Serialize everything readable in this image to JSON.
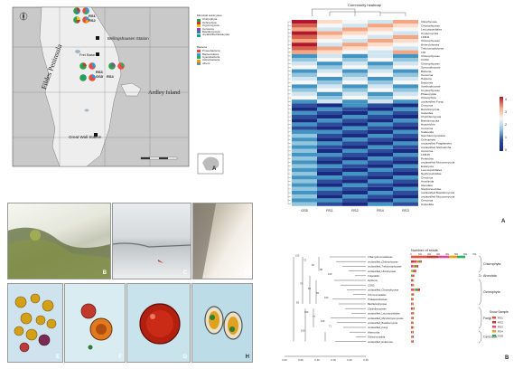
{
  "map": {
    "peninsula_label": "Fildes Peninsula",
    "island_label": "Ardley Island",
    "stations": [
      "Bellingshausen Station",
      "Frei Base",
      "Great Wall Station"
    ],
    "site_labels": [
      "RS1",
      "RS2",
      "RS3",
      "RS4",
      "GS5"
    ],
    "legend_eukaryotes_title": "Microbial eukaryotes",
    "legend_eukaryotes": [
      {
        "name": "Chlorophyta",
        "color": "#2e9e4a"
      },
      {
        "name": "Ochrophyta",
        "color": "#c0392b"
      },
      {
        "name": "Cryptomycota",
        "color": "#f1c40f"
      },
      {
        "name": "Cercozoa",
        "color": "#8e44ad"
      },
      {
        "name": "Basidiomycota",
        "color": "#2980b9"
      },
      {
        "name": "unclassified Eukaryota",
        "color": "#16a085"
      }
    ],
    "legend_bacteria_title": "Bacteria",
    "legend_bacteria": [
      {
        "name": "Proteobacteria",
        "color": "#e74c3c"
      },
      {
        "name": "Bacteroidetes",
        "color": "#3498db"
      },
      {
        "name": "Cyanobacteria",
        "color": "#27ae60"
      },
      {
        "name": "Actinobacteria",
        "color": "#f39c12"
      },
      {
        "name": "others",
        "color": "#7f8c8d"
      }
    ],
    "panel_letter": "A"
  },
  "photo_panels": [
    "B",
    "C",
    "D"
  ],
  "micro_panels": [
    "E",
    "F",
    "G",
    "H"
  ],
  "heatmap": {
    "title": "Community heatmap",
    "columns": [
      "GS5",
      "RS1",
      "RS2",
      "RS4",
      "RS3"
    ],
    "rows": [
      "Ulkophyceae",
      "Chlorophyceae",
      "Leucosporidiales",
      "Cryptomycota",
      "LKM11",
      "Chlorophyceae",
      "Heterolobosea",
      "Trebouxiophyceae",
      "LT8",
      "Chlorophyceae",
      "CON3",
      "Chlorophyceae",
      "Synurophyceae",
      "Bacteria",
      "Cercozoa",
      "Haptoria",
      "Diatomea",
      "Xanthophyceae",
      "Cryptophyceae",
      "Phaeocystia",
      "Chlorophyta",
      "unclassified Fungi",
      "Cercozoa",
      "Rozellomycota",
      "Colpodea",
      "Chytridiomycota",
      "Basidiomycota",
      "Hypotrichia",
      "Cercozoa",
      "Calanoida",
      "Saccharomycetales",
      "Ochrophyta",
      "unclassified Fragilariales",
      "unclassified Stichotricha",
      "Cercozoa",
      "LKM15",
      "Peritrichia",
      "unclassified Mucoromycota",
      "Eukaryota",
      "Leucosporidiales",
      "Nephroselmidae",
      "Cercozoa",
      "Arcellinida",
      "Alveolata",
      "Stephanoecidae",
      "unclassified Basidiomycota",
      "unclassified Mucoromycota",
      "Cercozoa",
      "Colpodida"
    ],
    "scale_ticks": [
      "4",
      "3",
      "2",
      "1",
      "0"
    ],
    "panel_letter": "A"
  },
  "tree": {
    "header": "Number of reads",
    "taxa": [
      "Chlamydomonadaceae",
      "unclassified_Chlorophyceae",
      "unclassified_Trebouxiophyceae",
      "unclassified_Ulvophyceae",
      "Colpodella",
      "Hydrurus",
      "CON3",
      "unclassified_Chrysophyceae",
      "Ochromonadales",
      "Thalassiosiraceae",
      "Bacillariophyceae",
      "Chytridiomycetes",
      "unclassified_Leucosporidiales",
      "unclassified_Microbotryomycetes",
      "unclassified_Basidiomycota",
      "unclassified_Fungi",
      "Heteromita",
      "Glissomonadida",
      "unclassified_Eukaryota"
    ],
    "bootstraps": [
      "100",
      "72",
      "60",
      "98",
      "100",
      "76",
      "69",
      "55",
      "100",
      "83",
      "100",
      "77",
      "100",
      "71",
      "100"
    ],
    "groups": [
      "Chlorophyta",
      "Alveolata",
      "Ochrophyta",
      "Fungi",
      "Cercozoa"
    ],
    "axis_ticks": [
      "0.00",
      "0.05",
      "0.10",
      "0.15",
      "0.20",
      "0.25"
    ],
    "reads_ticks": [
      "0",
      "10k",
      "20k",
      "30k",
      "40k",
      "50k",
      "60k",
      "70k"
    ],
    "legend_title": "Snow Sample",
    "legend": [
      {
        "name": "RS1",
        "color": "#e74c3c"
      },
      {
        "name": "RS2",
        "color": "#c0392b"
      },
      {
        "name": "RS3",
        "color": "#e84393"
      },
      {
        "name": "RS4",
        "color": "#f39c12"
      },
      {
        "name": "GS5",
        "color": "#27ae60"
      }
    ],
    "panel_letter": "B"
  }
}
